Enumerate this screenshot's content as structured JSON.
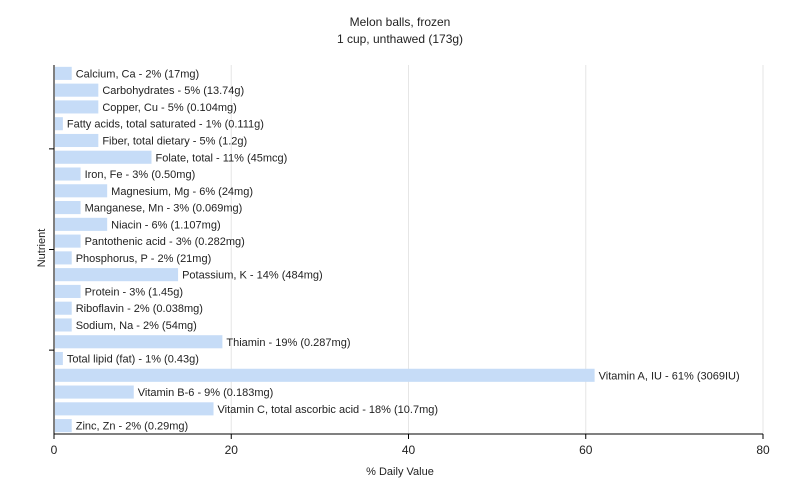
{
  "chart_data": {
    "type": "bar",
    "orientation": "horizontal",
    "title": "Melon balls, frozen",
    "subtitle": "1 cup, unthawed (173g)",
    "xlabel": "% Daily Value",
    "ylabel": "Nutrient",
    "xlim": [
      0,
      80
    ],
    "xticks": [
      0,
      20,
      40,
      60,
      80
    ],
    "grid": true,
    "bar_color": "#c6dcf7",
    "categories": [
      "Calcium, Ca",
      "Carbohydrates",
      "Copper, Cu",
      "Fatty acids, total saturated",
      "Fiber, total dietary",
      "Folate, total",
      "Iron, Fe",
      "Magnesium, Mg",
      "Manganese, Mn",
      "Niacin",
      "Pantothenic acid",
      "Phosphorus, P",
      "Potassium, K",
      "Protein",
      "Riboflavin",
      "Sodium, Na",
      "Thiamin",
      "Total lipid (fat)",
      "Vitamin A, IU",
      "Vitamin B-6",
      "Vitamin C, total ascorbic acid",
      "Zinc, Zn"
    ],
    "values": [
      2,
      5,
      5,
      1,
      5,
      11,
      3,
      6,
      3,
      6,
      3,
      2,
      14,
      3,
      2,
      2,
      19,
      1,
      61,
      9,
      18,
      2
    ],
    "labels": [
      "Calcium, Ca - 2% (17mg)",
      "Carbohydrates - 5% (13.74g)",
      "Copper, Cu - 5% (0.104mg)",
      "Fatty acids, total saturated - 1% (0.111g)",
      "Fiber, total dietary - 5% (1.2g)",
      "Folate, total - 11% (45mcg)",
      "Iron, Fe - 3% (0.50mg)",
      "Magnesium, Mg - 6% (24mg)",
      "Manganese, Mn - 3% (0.069mg)",
      "Niacin - 6% (1.107mg)",
      "Pantothenic acid - 3% (0.282mg)",
      "Phosphorus, P - 2% (21mg)",
      "Potassium, K - 14% (484mg)",
      "Protein - 3% (1.45g)",
      "Riboflavin - 2% (0.038mg)",
      "Sodium, Na - 2% (54mg)",
      "Thiamin - 19% (0.287mg)",
      "Total lipid (fat) - 1% (0.43g)",
      "Vitamin A, IU - 61% (3069IU)",
      "Vitamin B-6 - 9% (0.183mg)",
      "Vitamin C, total ascorbic acid - 18% (10.7mg)",
      "Zinc, Zn - 2% (0.29mg)"
    ]
  }
}
